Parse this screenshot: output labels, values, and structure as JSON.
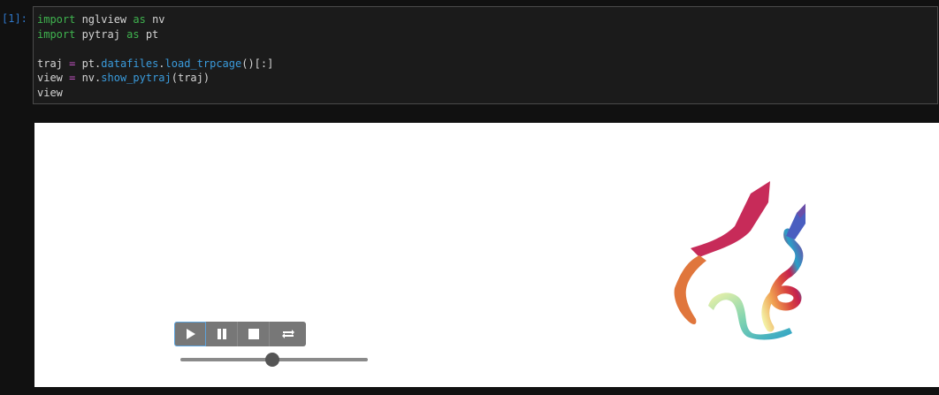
{
  "cell": {
    "prompt": "[1]:",
    "code": {
      "l1": {
        "k1": "import",
        "m1": " nglview ",
        "k2": "as",
        "m2": " nv"
      },
      "l2": {
        "k1": "import",
        "m1": " pytraj ",
        "k2": "as",
        "m2": " pt"
      },
      "l3": {
        "a": "traj ",
        "op": "=",
        "b": " pt.",
        "f1": "datafiles",
        "c": ".",
        "f2": "load_trpcage",
        "d": "()[:]"
      },
      "l4": {
        "a": "view ",
        "op": "=",
        "b": " nv.",
        "f1": "show_pytraj",
        "c": "(traj)"
      },
      "l5": "view"
    }
  },
  "player": {
    "buttons": [
      "play-icon",
      "pause-icon",
      "stop-icon",
      "repeat-icon"
    ],
    "frame_fraction": 0.49
  },
  "viewer": {
    "ribbon_gradient": [
      "#f3f3a8",
      "#f0a050",
      "#d8453e",
      "#c42050",
      "#2aa0c8",
      "#7ed3b0",
      "#6a4ea8"
    ]
  }
}
